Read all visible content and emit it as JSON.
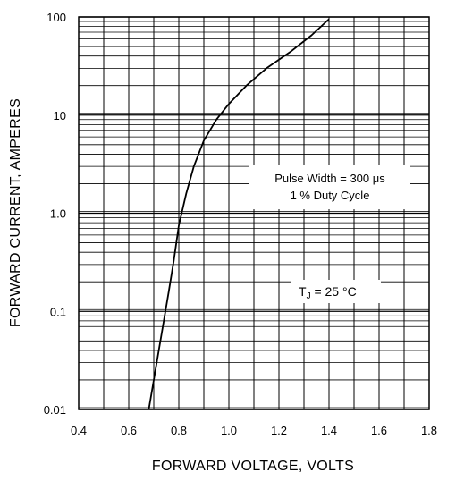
{
  "chart_data": {
    "type": "line",
    "xlabel": "FORWARD VOLTAGE, VOLTS",
    "ylabel": "FORWARD CURRENT, AMPERES",
    "y_scale": "log",
    "xlim": [
      0.4,
      1.8
    ],
    "ylim": [
      0.01,
      100
    ],
    "grid": true,
    "x_ticks": [
      "0.4",
      "0.6",
      "0.8",
      "1.0",
      "1.2",
      "1.4",
      "1.6",
      "1.8"
    ],
    "y_ticks": [
      "0.01",
      "0.1",
      "1.0",
      "10",
      "100"
    ],
    "series": [
      {
        "x": [
          0.68,
          0.7,
          0.72,
          0.74,
          0.76,
          0.78,
          0.8,
          0.83,
          0.86,
          0.9,
          0.95,
          1.0,
          1.07,
          1.15,
          1.25,
          1.33,
          1.4
        ],
        "y": [
          0.01,
          0.02,
          0.04,
          0.08,
          0.16,
          0.33,
          0.75,
          1.6,
          3.0,
          5.5,
          9.0,
          13,
          20,
          30,
          45,
          65,
          95
        ]
      }
    ],
    "annotations": {
      "pulse_width": "Pulse Width = 300 μs",
      "duty_cycle": "1 % Duty Cycle",
      "tj_main": "T",
      "tj_sub": "J",
      "tj_value": " = 25 °C"
    }
  }
}
